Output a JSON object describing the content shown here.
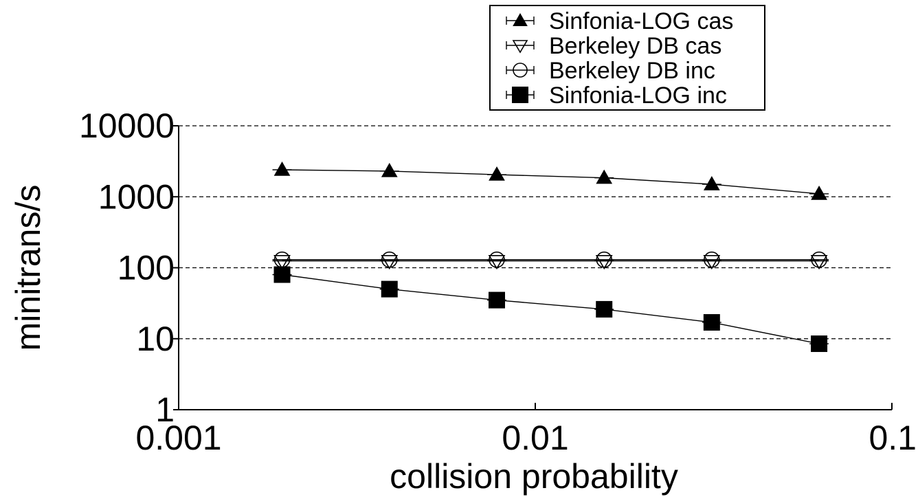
{
  "chart_data": {
    "type": "line",
    "xlabel": "collision probability",
    "ylabel": "minitrans/s",
    "x_scale": "log",
    "y_scale": "log",
    "xlim": [
      0.001,
      0.1
    ],
    "ylim": [
      1,
      10000
    ],
    "x_ticks": [
      "0.001",
      "0.01",
      "0.1"
    ],
    "y_ticks": [
      "1",
      "10",
      "100",
      "1000",
      "10000"
    ],
    "grid": "dashed horizontal at y ticks",
    "legend_position": "top-right, outside plot area",
    "x": [
      0.00195,
      0.0039,
      0.0078,
      0.0156,
      0.03125,
      0.0625
    ],
    "series": [
      {
        "name": "Sinfonia-LOG cas",
        "marker": "filled-triangle-up",
        "values": [
          2400,
          2300,
          2050,
          1850,
          1500,
          1100
        ]
      },
      {
        "name": "Berkeley DB cas",
        "marker": "open-triangle-down",
        "values": [
          125,
          125,
          125,
          125,
          125,
          125
        ]
      },
      {
        "name": "Berkeley DB inc",
        "marker": "open-circle",
        "values": [
          130,
          130,
          130,
          130,
          130,
          130
        ]
      },
      {
        "name": "Sinfonia-LOG inc",
        "marker": "filled-square",
        "values": [
          80,
          50,
          35,
          26,
          17,
          8.5
        ]
      }
    ]
  }
}
